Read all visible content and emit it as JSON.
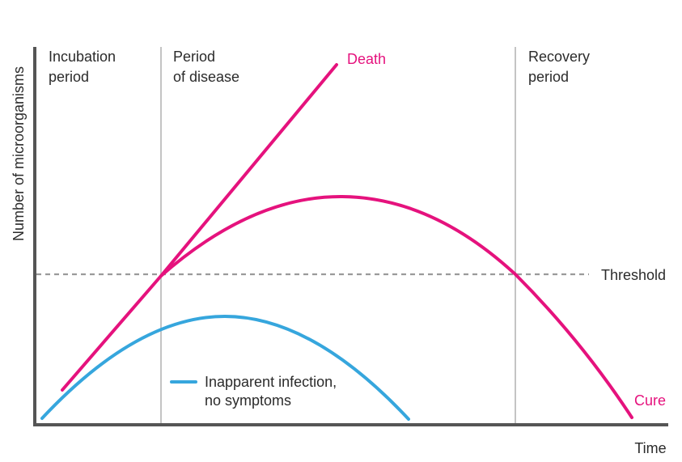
{
  "diagram": {
    "y_axis_label": "Number of microorganisms",
    "x_axis_label": "Time",
    "phases": [
      {
        "line1": "Incubation",
        "line2": "period"
      },
      {
        "line1": "Period",
        "line2": "of disease"
      },
      {
        "line1": "Recovery",
        "line2": "period"
      }
    ],
    "threshold_label": "Threshold",
    "curves": {
      "death_label": "Death",
      "cure_label": "Cure",
      "inapparent_label_line1": "Inapparent infection,",
      "inapparent_label_line2": "no symptoms"
    },
    "colors": {
      "magenta": "#e5127d",
      "blue": "#36a6dd",
      "axis": "#555555",
      "divider": "#c4c4c4",
      "threshold": "#9a9a9a",
      "text": "#2b2b2b"
    }
  }
}
